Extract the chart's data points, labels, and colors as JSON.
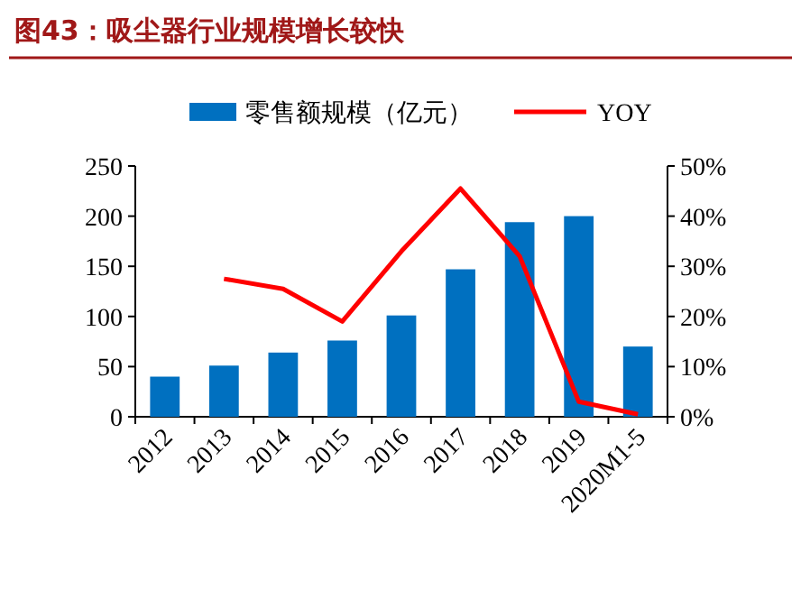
{
  "chart_data": {
    "type": "bar",
    "title": "图43：吸尘器行业规模增长较快",
    "categories": [
      "2012",
      "2013",
      "2014",
      "2015",
      "2016",
      "2017",
      "2018",
      "2019",
      "2020M1-5"
    ],
    "series": [
      {
        "name": "零售额规模（亿元）",
        "color": "#0070c0",
        "values": [
          40,
          51,
          64,
          76,
          101,
          147,
          194,
          200,
          70
        ]
      },
      {
        "name": "YOY",
        "type": "line",
        "axis": "y2",
        "color": "#ff0000",
        "values": [
          null,
          27.5,
          25.5,
          19,
          33,
          45.5,
          32,
          3,
          0.5
        ]
      }
    ],
    "ylim": [
      0,
      250
    ],
    "yticks": [
      0,
      50,
      100,
      150,
      200,
      250
    ],
    "y2lim": [
      0,
      50
    ],
    "y2ticks": [
      {
        "value": 0,
        "label": "0%"
      },
      {
        "value": 10,
        "label": "10%"
      },
      {
        "value": 20,
        "label": "20%"
      },
      {
        "value": 30,
        "label": "30%"
      },
      {
        "value": 40,
        "label": "40%"
      },
      {
        "value": 50,
        "label": "50%"
      }
    ],
    "legend": "top",
    "grid": false
  }
}
